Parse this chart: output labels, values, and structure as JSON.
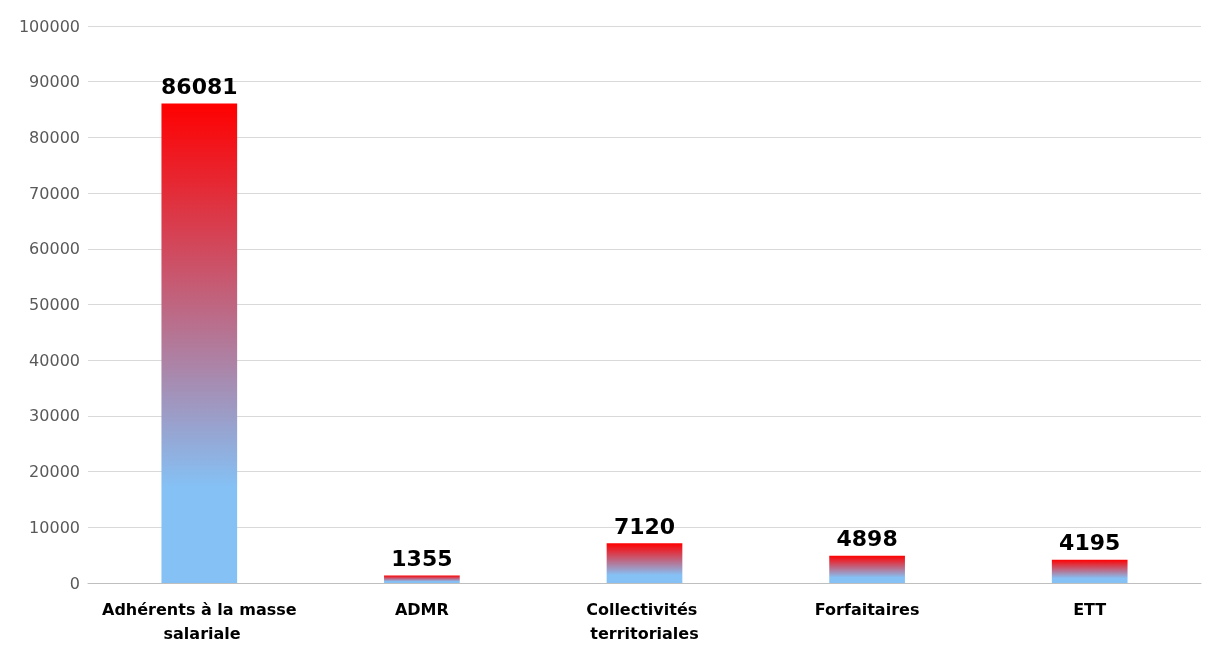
{
  "chart_data": {
    "type": "bar",
    "categories": [
      "Adhérents à la masse salariale",
      "ADMR",
      "Collectivités territoriales",
      "Forfaitaires",
      "ETT"
    ],
    "values": [
      86081,
      1355,
      7120,
      4898,
      4195
    ],
    "color": "#ff0000",
    "ylim": [
      0,
      100000
    ],
    "yticks": [
      0,
      10000,
      20000,
      30000,
      40000,
      50000,
      60000,
      70000,
      80000,
      90000,
      100000
    ],
    "grid": "y",
    "data_labels": true
  }
}
